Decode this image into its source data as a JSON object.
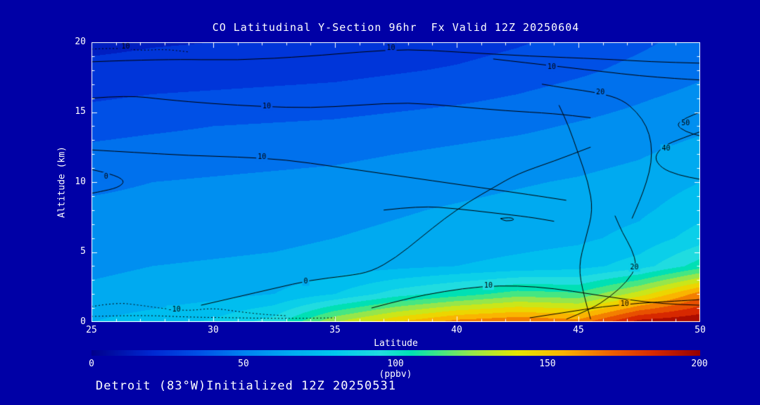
{
  "chart_data": {
    "type": "heatmap",
    "title": "CO Latitudinal Y-Section 96hr  Fx Valid 12Z 20250604",
    "xlabel": "Latitude",
    "ylabel": "Altitude (km)",
    "xlim": [
      25,
      50
    ],
    "ylim": [
      0,
      20
    ],
    "x_ticks": [
      "25",
      "30",
      "35",
      "40",
      "45",
      "50"
    ],
    "y_ticks": [
      "0",
      "5",
      "10",
      "15",
      "20"
    ],
    "x": [
      25,
      27.5,
      30,
      32.5,
      35,
      37.5,
      40,
      42.5,
      45,
      47.5,
      50
    ],
    "y": [
      0,
      2,
      4,
      6,
      8,
      10,
      12,
      14,
      16,
      18,
      20
    ],
    "values": [
      [
        70,
        75,
        82,
        95,
        130,
        150,
        165,
        170,
        165,
        195,
        200
      ],
      [
        62,
        64,
        66,
        70,
        80,
        95,
        105,
        115,
        112,
        135,
        165
      ],
      [
        58,
        60,
        61,
        62,
        64,
        67,
        70,
        73,
        76,
        85,
        105
      ],
      [
        55,
        56,
        57,
        58,
        60,
        62,
        64,
        66,
        68,
        73,
        85
      ],
      [
        52,
        53,
        54,
        55,
        57,
        59,
        61,
        63,
        65,
        68,
        76
      ],
      [
        48,
        50,
        51,
        52,
        53,
        55,
        57,
        59,
        61,
        64,
        70
      ],
      [
        43,
        45,
        46,
        47,
        48,
        50,
        52,
        54,
        56,
        59,
        64
      ],
      [
        36,
        38,
        40,
        41,
        42,
        44,
        46,
        48,
        51,
        54,
        58
      ],
      [
        29,
        31,
        32,
        33,
        34,
        36,
        38,
        41,
        45,
        49,
        53
      ],
      [
        23,
        24,
        25,
        26,
        27,
        29,
        31,
        34,
        38,
        43,
        48
      ],
      [
        17,
        19,
        20,
        21,
        22,
        24,
        26,
        29,
        33,
        38,
        44
      ]
    ],
    "contours": [
      {
        "label": "10",
        "dash": true,
        "label_at": [
          26.4,
          19.7
        ],
        "points": [
          [
            25,
            19.5
          ],
          [
            26,
            19.6
          ],
          [
            27,
            19.4
          ],
          [
            28,
            19.5
          ],
          [
            29,
            19.3
          ]
        ]
      },
      {
        "label": "10",
        "dash": false,
        "label_at": [
          37.3,
          19.6
        ],
        "points": [
          [
            25,
            18.6
          ],
          [
            28,
            18.8
          ],
          [
            31,
            18.7
          ],
          [
            34,
            19.0
          ],
          [
            36,
            19.3
          ],
          [
            38,
            19.5
          ],
          [
            40,
            19.3
          ],
          [
            43,
            19.0
          ],
          [
            46,
            18.8
          ],
          [
            48,
            18.6
          ],
          [
            50,
            18.5
          ]
        ]
      },
      {
        "label": "10",
        "dash": false,
        "label_at": [
          32.2,
          15.4
        ],
        "points": [
          [
            25,
            16.0
          ],
          [
            26.5,
            16.2
          ],
          [
            28,
            15.9
          ],
          [
            30,
            15.6
          ],
          [
            32,
            15.4
          ],
          [
            34,
            15.3
          ],
          [
            36,
            15.5
          ],
          [
            38,
            15.7
          ],
          [
            40,
            15.4
          ],
          [
            42,
            15.1
          ],
          [
            44,
            14.9
          ],
          [
            45.5,
            14.6
          ]
        ]
      },
      {
        "label": "10",
        "dash": false,
        "label_at": [
          32.0,
          11.8
        ],
        "points": [
          [
            25,
            12.3
          ],
          [
            27,
            12.1
          ],
          [
            29,
            11.9
          ],
          [
            31,
            11.8
          ],
          [
            33,
            11.6
          ],
          [
            35,
            11.1
          ],
          [
            37,
            10.6
          ],
          [
            39,
            10.1
          ],
          [
            41,
            9.6
          ],
          [
            43,
            9.1
          ],
          [
            44.5,
            8.7
          ]
        ]
      },
      {
        "label": "0",
        "dash": false,
        "label_at": [
          25.6,
          10.4
        ],
        "points": [
          [
            25,
            10.9
          ],
          [
            25.8,
            10.6
          ],
          [
            26.4,
            10.1
          ],
          [
            26.1,
            9.6
          ],
          [
            25.3,
            9.3
          ],
          [
            25,
            9.2
          ]
        ]
      },
      {
        "label": "0",
        "dash": false,
        "label_at": [
          33.8,
          2.9
        ],
        "points": [
          [
            29.5,
            1.2
          ],
          [
            31,
            1.8
          ],
          [
            32.5,
            2.4
          ],
          [
            34,
            3.0
          ],
          [
            35.5,
            3.3
          ],
          [
            36.5,
            3.6
          ],
          [
            37.5,
            4.6
          ],
          [
            38.5,
            6.0
          ],
          [
            39.5,
            7.4
          ],
          [
            40.5,
            8.6
          ],
          [
            41.5,
            9.6
          ],
          [
            42.5,
            10.6
          ],
          [
            44,
            11.5
          ],
          [
            45.5,
            12.5
          ]
        ]
      },
      {
        "label": "-10",
        "dash": true,
        "label_at": [
          28.4,
          0.9
        ],
        "points": [
          [
            25,
            1.1
          ],
          [
            26,
            1.4
          ],
          [
            27,
            1.2
          ],
          [
            28,
            0.95
          ],
          [
            29,
            0.8
          ],
          [
            30,
            1.0
          ],
          [
            31,
            0.75
          ],
          [
            32,
            0.55
          ],
          [
            33,
            0.45
          ]
        ]
      },
      {
        "label": "",
        "dash": true,
        "label_at": [
          0,
          0
        ],
        "points": [
          [
            25,
            0.4
          ],
          [
            27,
            0.5
          ],
          [
            29,
            0.35
          ],
          [
            31,
            0.3
          ],
          [
            33,
            0.25
          ],
          [
            35,
            0.3
          ]
        ]
      },
      {
        "label": "10",
        "dash": false,
        "label_at": [
          41.3,
          2.6
        ],
        "points": [
          [
            36.5,
            1.0
          ],
          [
            38,
            1.7
          ],
          [
            39.5,
            2.2
          ],
          [
            41,
            2.55
          ],
          [
            42.5,
            2.6
          ],
          [
            44,
            2.4
          ],
          [
            45.5,
            2.0
          ],
          [
            47,
            1.6
          ],
          [
            48.5,
            1.3
          ],
          [
            50,
            1.2
          ]
        ]
      },
      {
        "label": "10",
        "dash": false,
        "label_at": [
          46.9,
          1.3
        ],
        "points": [
          [
            43,
            0.3
          ],
          [
            44.5,
            0.7
          ],
          [
            46,
            1.1
          ],
          [
            47.5,
            1.35
          ],
          [
            49,
            1.5
          ],
          [
            50,
            1.6
          ]
        ]
      },
      {
        "label": "20",
        "dash": false,
        "label_at": [
          47.3,
          3.9
        ],
        "points": [
          [
            44.5,
            0.2
          ],
          [
            45.5,
            0.9
          ],
          [
            46.3,
            1.8
          ],
          [
            47.0,
            2.9
          ],
          [
            47.4,
            4.0
          ],
          [
            47.2,
            5.2
          ],
          [
            46.8,
            6.4
          ],
          [
            46.5,
            7.6
          ]
        ]
      },
      {
        "label": "20",
        "dash": false,
        "label_at": [
          45.9,
          16.4
        ],
        "points": [
          [
            43.5,
            17.0
          ],
          [
            44.5,
            16.7
          ],
          [
            45.8,
            16.4
          ],
          [
            46.8,
            15.9
          ],
          [
            47.4,
            15.0
          ],
          [
            47.8,
            14.0
          ],
          [
            48.0,
            12.8
          ],
          [
            48.0,
            11.4
          ],
          [
            47.8,
            10.0
          ],
          [
            47.5,
            8.6
          ],
          [
            47.2,
            7.4
          ]
        ]
      },
      {
        "label": "40",
        "dash": false,
        "label_at": [
          48.6,
          12.4
        ],
        "points": [
          [
            50,
            13.6
          ],
          [
            49.2,
            13.1
          ],
          [
            48.5,
            12.6
          ],
          [
            48.1,
            11.8
          ],
          [
            48.4,
            11.0
          ],
          [
            49.1,
            10.5
          ],
          [
            50,
            10.2
          ]
        ]
      },
      {
        "label": "50",
        "dash": false,
        "label_at": [
          49.4,
          14.2
        ],
        "points": [
          [
            50,
            15.0
          ],
          [
            49.4,
            14.6
          ],
          [
            49.0,
            14.1
          ],
          [
            49.4,
            13.6
          ],
          [
            50,
            13.3
          ]
        ]
      },
      {
        "label": "10",
        "dash": false,
        "label_at": [
          43.9,
          18.2
        ],
        "points": [
          [
            41.5,
            18.8
          ],
          [
            43,
            18.5
          ],
          [
            44.5,
            18.2
          ],
          [
            46,
            17.9
          ],
          [
            47.5,
            17.6
          ],
          [
            49,
            17.4
          ],
          [
            50,
            17.3
          ]
        ]
      },
      {
        "label": "",
        "dash": false,
        "label_at": [
          0,
          0
        ],
        "points": [
          [
            45.5,
            0.2
          ],
          [
            45.2,
            2
          ],
          [
            45.0,
            4
          ],
          [
            45.3,
            6
          ],
          [
            45.6,
            8
          ],
          [
            45.4,
            10
          ],
          [
            45.0,
            12
          ],
          [
            44.6,
            14
          ],
          [
            44.2,
            15.5
          ]
        ]
      },
      {
        "label": "",
        "dash": false,
        "label_at": [
          0,
          0
        ],
        "points": [
          [
            37,
            8.0
          ],
          [
            38.5,
            8.3
          ],
          [
            40,
            8.1
          ],
          [
            41.5,
            7.8
          ],
          [
            43,
            7.5
          ],
          [
            44,
            7.2
          ]
        ]
      },
      {
        "label": "",
        "dash": false,
        "label_at": [
          0,
          0
        ],
        "points": [
          [
            41.8,
            7.4
          ],
          [
            42.2,
            7.5
          ],
          [
            42.4,
            7.3
          ],
          [
            42.0,
            7.2
          ],
          [
            41.8,
            7.4
          ]
        ]
      }
    ],
    "colorbar": {
      "label": "(ppbv)",
      "ticks": [
        "0",
        "50",
        "100",
        "150",
        "200"
      ],
      "range": [
        0,
        200
      ],
      "stops": [
        [
          0,
          "#00008c"
        ],
        [
          20,
          "#0028d2"
        ],
        [
          35,
          "#0050e6"
        ],
        [
          50,
          "#0082f0"
        ],
        [
          65,
          "#00aaf0"
        ],
        [
          80,
          "#00c8ee"
        ],
        [
          95,
          "#20dce0"
        ],
        [
          105,
          "#00e0b4"
        ],
        [
          115,
          "#46e682"
        ],
        [
          125,
          "#96e64b"
        ],
        [
          140,
          "#e6e600"
        ],
        [
          155,
          "#fab400"
        ],
        [
          170,
          "#f06400"
        ],
        [
          185,
          "#d72800"
        ],
        [
          200,
          "#960000"
        ]
      ]
    }
  },
  "footer": "Detroit (83°W)Initialized 12Z 20250531",
  "colors": {
    "background": "#0000a6",
    "text": "#ffffff",
    "frame": "#ffffff",
    "contour": "#000000"
  }
}
